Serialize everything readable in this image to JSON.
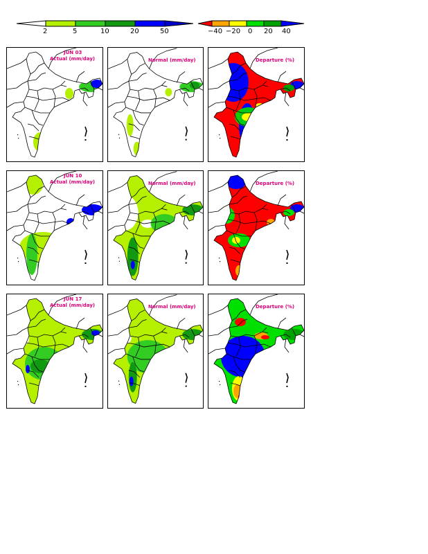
{
  "colorbars": {
    "rainfall": {
      "ticks": [
        "2",
        "5",
        "10",
        "20",
        "50"
      ],
      "colors": [
        "#ffffff",
        "#b4f000",
        "#33cc22",
        "#119911",
        "#0000ff"
      ]
    },
    "departure": {
      "ticks": [
        "−40",
        "−20",
        "0",
        "20",
        "40"
      ],
      "colors": [
        "#ff0000",
        "#ffa500",
        "#ffff00",
        "#00e000",
        "#00a000",
        "#0000ff"
      ]
    }
  },
  "rows": [
    {
      "date": "JUN 03",
      "actual": "Actual (mm/day)",
      "normal": "Normal (mm/day)",
      "departure": "Departure (%)"
    },
    {
      "date": "JUN 10",
      "actual": "Actual (mm/day)",
      "normal": "Normal (mm/day)",
      "departure": "Departure (%)"
    },
    {
      "date": "JUN 17",
      "actual": "Actual (mm/day)",
      "normal": "Normal (mm/day)",
      "departure": "Departure (%)"
    }
  ],
  "colors": {
    "label": "#e0007a",
    "rain_light": "#b4f000",
    "rain_mid": "#33cc22",
    "rain_heavy": "#119911",
    "rain_extreme": "#0000ff",
    "dep_neg_strong": "#ff0000",
    "dep_neg": "#ffa500",
    "dep_zero": "#ffff00",
    "dep_pos": "#00e000",
    "dep_pos_strong": "#00a000",
    "dep_very_pos": "#0000ff"
  }
}
